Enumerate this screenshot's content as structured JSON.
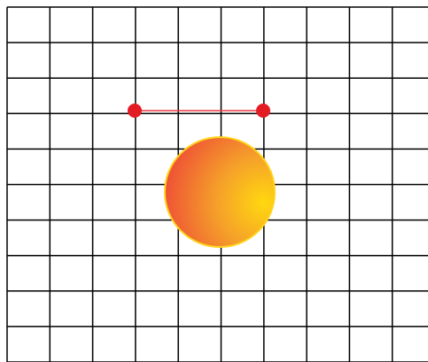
{
  "grid": {
    "columns": 10,
    "rows": 10,
    "line_color": "#000000",
    "background_color": "#ffffff"
  },
  "segment": {
    "endpoint_color": "#e31b23",
    "line_color": "#e8383e"
  },
  "ball": {
    "border_color": "#ffd21a",
    "gradient_colors": [
      "#ffd80f",
      "#f5a02a",
      "#ee4b36"
    ]
  }
}
